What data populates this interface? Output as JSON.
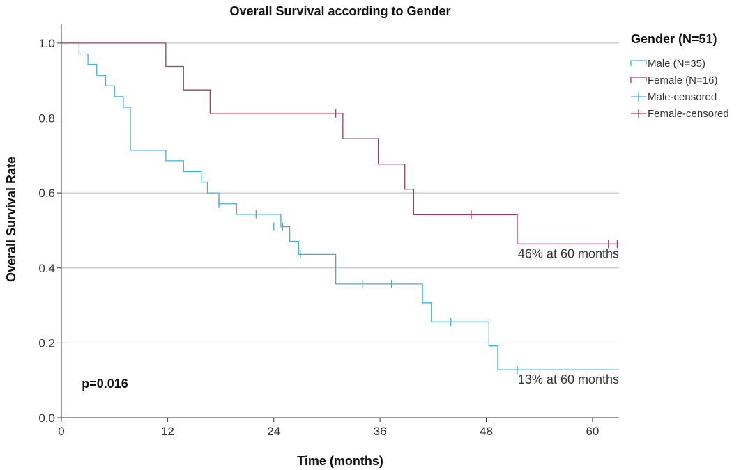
{
  "chart_data": {
    "type": "line",
    "title": "Overall Survival according to Gender",
    "xlabel": "Time (months)",
    "ylabel": "Overall Survival Rate",
    "xlim": [
      0,
      63
    ],
    "ylim": [
      0,
      1.05
    ],
    "x_ticks": [
      0,
      12,
      24,
      36,
      48,
      60
    ],
    "x_tick_labels": [
      "0",
      "12",
      "24",
      "36",
      "48",
      "60"
    ],
    "y_ticks": [
      0,
      0.2,
      0.4,
      0.6,
      0.8,
      1.0
    ],
    "y_tick_labels": [
      "0.0",
      "0.2",
      "0.4",
      "0.6",
      "0.8",
      "1.0"
    ],
    "grid": "horizontal",
    "legend": {
      "title": "Gender (N=51)",
      "placement": "top-right-outside",
      "entries": [
        {
          "label": "Male (N=35)",
          "kind": "step",
          "color": "#3ab0e2"
        },
        {
          "label": "Female (N=16)",
          "kind": "step",
          "color": "#a83b5c"
        },
        {
          "label": "Male-censored",
          "kind": "censor",
          "color": "#3ab0e2"
        },
        {
          "label": "Female-censored",
          "kind": "censor",
          "color": "#a83b5c"
        }
      ]
    },
    "series": [
      {
        "name": "Male (N=35)",
        "color": "#3ab0e2",
        "steps": [
          [
            0,
            1.0
          ],
          [
            2,
            0.971
          ],
          [
            3,
            0.943
          ],
          [
            4,
            0.914
          ],
          [
            5,
            0.886
          ],
          [
            6,
            0.857
          ],
          [
            7,
            0.829
          ],
          [
            7.8,
            0.714
          ],
          [
            11.8,
            0.686
          ],
          [
            13.8,
            0.657
          ],
          [
            15.8,
            0.629
          ],
          [
            16.5,
            0.6
          ],
          [
            17.8,
            0.571
          ],
          [
            19.8,
            0.543
          ],
          [
            24.8,
            0.51
          ],
          [
            25.8,
            0.471
          ],
          [
            26.8,
            0.436
          ],
          [
            31,
            0.357
          ],
          [
            40.8,
            0.307
          ],
          [
            41.8,
            0.256
          ],
          [
            48.3,
            0.192
          ],
          [
            49.3,
            0.128
          ]
        ],
        "end_x": 63,
        "censored": [
          [
            17.8,
            0.571
          ],
          [
            22,
            0.543
          ],
          [
            24,
            0.51
          ],
          [
            25,
            0.51
          ],
          [
            27,
            0.436
          ],
          [
            34,
            0.357
          ],
          [
            37.3,
            0.357
          ],
          [
            44,
            0.256
          ],
          [
            51.5,
            0.128
          ]
        ]
      },
      {
        "name": "Female (N=16)",
        "color": "#a83b5c",
        "steps": [
          [
            0,
            1.0
          ],
          [
            11.8,
            0.9375
          ],
          [
            13.8,
            0.875
          ],
          [
            16.8,
            0.8125
          ],
          [
            31.8,
            0.745
          ],
          [
            35.8,
            0.677
          ],
          [
            38.8,
            0.61
          ],
          [
            39.8,
            0.542
          ],
          [
            51.5,
            0.464
          ]
        ],
        "end_x": 63,
        "censored": [
          [
            31,
            0.8125
          ],
          [
            46.3,
            0.542
          ],
          [
            61.8,
            0.464
          ],
          [
            62.8,
            0.464
          ]
        ]
      }
    ],
    "annotations": [
      {
        "text": "46% at 60 months",
        "x": 63,
        "y": 0.464,
        "anchor": "end",
        "dy": 20
      },
      {
        "text": "13% at 60 months",
        "x": 63,
        "y": 0.128,
        "anchor": "end",
        "dy": 20
      },
      {
        "text": "p=0.016",
        "x": 2.3,
        "y": 0.08,
        "anchor": "start",
        "dy": 0,
        "bold": true
      }
    ]
  }
}
